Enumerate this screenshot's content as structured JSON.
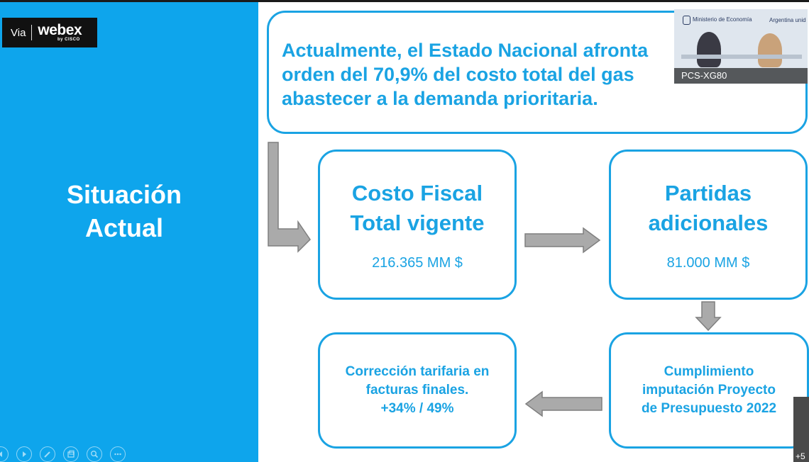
{
  "badge": {
    "via": "Via",
    "brand": "webex",
    "by": "by CISCO"
  },
  "sidebar": {
    "title_line1": "Situación",
    "title_line2": "Actual"
  },
  "controls": [
    {
      "name": "prev-icon"
    },
    {
      "name": "play-icon"
    },
    {
      "name": "pen-icon"
    },
    {
      "name": "slides-icon"
    },
    {
      "name": "zoom-icon"
    },
    {
      "name": "more-icon"
    }
  ],
  "slide": {
    "intro": "Actualmente, el Estado Nacional afronta\norden del 70,9% del costo total del gas\nabastecer a la demanda prioritaria.",
    "box1": {
      "title": "Costo Fiscal\nTotal vigente",
      "amount": "216.365 MM $"
    },
    "box2": {
      "title": "Partidas\nadicionales",
      "amount": "81.000 MM $"
    },
    "box3": {
      "title": "Corrección tarifaria en\nfacturas finales.\n+34% / 49%"
    },
    "box4": {
      "title": "Cumplimiento\nimputación Proyecto\nde Presupuesto 2022"
    }
  },
  "video": {
    "label": "PCS-XG80",
    "ministry": "Ministerio de Economía",
    "argentina": "Argentina unid"
  },
  "participants": {
    "overflow": "+5"
  },
  "colors": {
    "accent": "#1aa3e3",
    "panel": "#0ea5ec",
    "arrow": "#a9a9a9"
  }
}
